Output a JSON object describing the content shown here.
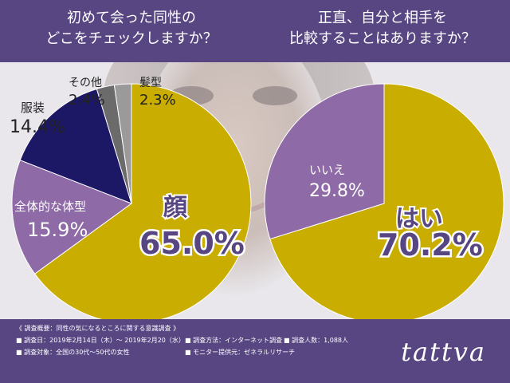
{
  "colors": {
    "header_bg": "#574682",
    "mustard": "#c9ad00",
    "purple": "#8e6aa6",
    "navy": "#1c1866",
    "gray_dark": "#6b6b6b",
    "gray_light": "#9a9a9a"
  },
  "titles": {
    "left_line1": "初めて会った同性の",
    "left_line2": "どこをチェックしますか？",
    "right_line1": "正直、自分と相手を",
    "right_line2": "比較することはありますか？"
  },
  "chart_data": [
    {
      "type": "pie",
      "title": "初めて会った同性のどこをチェックしますか？",
      "slices": [
        {
          "label": "顔",
          "value": 65.0,
          "value_text": "65.0%",
          "color": "#c9ad00"
        },
        {
          "label": "全体的な体型",
          "value": 15.9,
          "value_text": "15.9%",
          "color": "#8e6aa6"
        },
        {
          "label": "服装",
          "value": 14.4,
          "value_text": "14.4%",
          "color": "#1c1866"
        },
        {
          "label": "その他",
          "value": 2.4,
          "value_text": "2.4%",
          "color": "#6b6b6b"
        },
        {
          "label": "髪型",
          "value": 2.3,
          "value_text": "2.3%",
          "color": "#9a9a9a"
        }
      ]
    },
    {
      "type": "pie",
      "title": "正直、自分と相手を比較することはありますか？",
      "slices": [
        {
          "label": "はい",
          "value": 70.2,
          "value_text": "70.2%",
          "color": "#c9ad00"
        },
        {
          "label": "いいえ",
          "value": 29.8,
          "value_text": "29.8%",
          "color": "#8e6aa6"
        }
      ]
    }
  ],
  "footer": {
    "summary_title": "《 調査概要：同性の気になるところに関する意識調査 》",
    "date": "■ 調査日：2019年2月14日（木）～ 2019年2月20（水）",
    "method": "■ 調査方法：インターネット調査",
    "count": "■ 調査人数：1,088人",
    "target": "■ 調査対象：全国の30代～50代の女性",
    "provider": "■ モニター提供元：ゼネラルリサーチ",
    "brand": "tattva"
  }
}
